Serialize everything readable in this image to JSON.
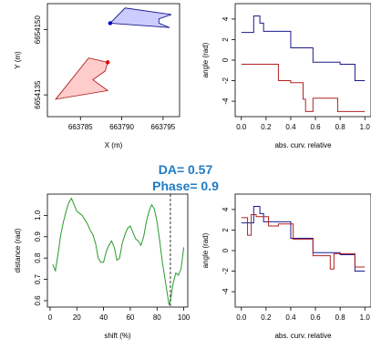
{
  "metrics": {
    "da_label": "DA= 0.57",
    "phase_label": "Phase= 0.9"
  },
  "colors": {
    "blue": "#1a1a8c",
    "red": "#b22222",
    "green": "#2a9a2a",
    "blue_fill": "#ccccff",
    "red_fill": "#ffcccc",
    "accent_text": "#1f7bc4"
  },
  "chart_data": [
    {
      "type": "scatter",
      "id": "map",
      "xlabel": "X (m)",
      "ylabel": "Y (m)",
      "xlim": [
        663781,
        663797
      ],
      "ylim": [
        6654130,
        6654156
      ],
      "xticks": [
        "663785",
        "663790",
        "663795"
      ],
      "yticks": [
        "6654135",
        "6654150"
      ],
      "series": [
        {
          "polygon": [
            [
              663788.6,
              6654151.5
            ],
            [
              663790.4,
              6654155.0
            ],
            [
              663796.0,
              6654153.5
            ],
            [
              663794.5,
              6654152.5
            ],
            [
              663794.5,
              6654151.5
            ],
            [
              663795.8,
              6654150.5
            ],
            [
              663788.6,
              6654151.5
            ]
          ],
          "color": "blue",
          "fill": "blue_fill",
          "start": [
            663788.6,
            6654151.5
          ]
        },
        {
          "polygon": [
            [
              663788.3,
              6654142.5
            ],
            [
              663786.0,
              6654143.5
            ],
            [
              663782.0,
              6654134.0
            ],
            [
              663788.3,
              6654136.0
            ],
            [
              663786.5,
              6654138.5
            ],
            [
              663788.0,
              6654140.5
            ],
            [
              663788.3,
              6654142.5
            ]
          ],
          "color": "red",
          "fill": "red_fill",
          "start": [
            663788.3,
            6654142.5
          ]
        }
      ]
    },
    {
      "type": "line",
      "id": "angle-top",
      "xlabel": "abs. curv. relative",
      "ylabel": "angle (rad)",
      "xlim": [
        -0.05,
        1.05
      ],
      "ylim": [
        -5.5,
        5.5
      ],
      "xticks": [
        "0.0",
        "0.2",
        "0.4",
        "0.6",
        "0.8",
        "1.0"
      ],
      "yticks": [
        "-4",
        "-2",
        "0",
        "2",
        "4"
      ],
      "series": [
        {
          "color": "blue",
          "x": [
            0,
            0.1,
            0.1,
            0.15,
            0.15,
            0.18,
            0.18,
            0.3,
            0.3,
            0.4,
            0.4,
            0.58,
            0.58,
            0.8,
            0.8,
            0.92,
            0.92,
            1.0
          ],
          "y": [
            2.7,
            2.7,
            4.3,
            4.3,
            3.6,
            3.6,
            2.8,
            2.8,
            2.8,
            2.8,
            1.2,
            1.2,
            -0.2,
            -0.2,
            -0.4,
            -0.4,
            -2.0,
            -2.0
          ]
        },
        {
          "color": "red",
          "x": [
            0,
            0.3,
            0.3,
            0.4,
            0.4,
            0.5,
            0.5,
            0.52,
            0.52,
            0.58,
            0.58,
            0.62,
            0.62,
            0.78,
            0.78,
            1.0
          ],
          "y": [
            -0.4,
            -0.4,
            -2.0,
            -2.0,
            -2.2,
            -2.2,
            -3.8,
            -3.8,
            -5.0,
            -5.0,
            -3.7,
            -3.7,
            -3.7,
            -3.7,
            -5.0,
            -5.0
          ]
        }
      ]
    },
    {
      "type": "line",
      "id": "distance",
      "xlabel": "shift (%)",
      "ylabel": "distance (rad)",
      "xlim": [
        -2,
        103
      ],
      "ylim": [
        0.57,
        1.1
      ],
      "xticks": [
        "0",
        "20",
        "40",
        "60",
        "80",
        "100"
      ],
      "yticks": [
        "0.6",
        "0.7",
        "0.8",
        "0.9",
        "1.0"
      ],
      "vline": 90,
      "series": [
        {
          "color": "green",
          "x": [
            2,
            4,
            6,
            8,
            10,
            12,
            14,
            16,
            18,
            20,
            22,
            24,
            26,
            28,
            30,
            32,
            34,
            36,
            38,
            40,
            42,
            44,
            46,
            48,
            50,
            52,
            54,
            56,
            58,
            60,
            62,
            64,
            66,
            68,
            70,
            72,
            74,
            76,
            78,
            80,
            82,
            84,
            86,
            88,
            89,
            90,
            92,
            94,
            96,
            98,
            100
          ],
          "y": [
            0.77,
            0.74,
            0.82,
            0.91,
            0.97,
            1.02,
            1.06,
            1.08,
            1.05,
            1.02,
            1.01,
            1.0,
            0.98,
            0.96,
            0.93,
            0.91,
            0.87,
            0.8,
            0.78,
            0.78,
            0.83,
            0.86,
            0.88,
            0.85,
            0.79,
            0.8,
            0.87,
            0.91,
            0.94,
            0.95,
            0.92,
            0.89,
            0.88,
            0.86,
            0.9,
            0.97,
            1.02,
            1.05,
            1.03,
            0.97,
            0.88,
            0.78,
            0.7,
            0.62,
            0.58,
            0.6,
            0.68,
            0.73,
            0.72,
            0.75,
            0.85
          ]
        }
      ]
    },
    {
      "type": "line",
      "id": "angle-bottom",
      "xlabel": "abs. curv. relative",
      "ylabel": "angle (rad)",
      "xlim": [
        -0.05,
        1.05
      ],
      "ylim": [
        -5.5,
        5.5
      ],
      "xticks": [
        "0.0",
        "0.2",
        "0.4",
        "0.6",
        "0.8",
        "1.0"
      ],
      "yticks": [
        "-4",
        "-2",
        "0",
        "2",
        "4"
      ],
      "series": [
        {
          "color": "blue",
          "x": [
            0,
            0.1,
            0.1,
            0.15,
            0.15,
            0.18,
            0.18,
            0.3,
            0.3,
            0.4,
            0.4,
            0.58,
            0.58,
            0.8,
            0.8,
            0.92,
            0.92,
            1.0
          ],
          "y": [
            2.7,
            2.7,
            4.3,
            4.3,
            3.6,
            3.6,
            2.8,
            2.8,
            2.8,
            2.8,
            1.2,
            1.2,
            -0.2,
            -0.2,
            -0.4,
            -0.4,
            -2.0,
            -2.0
          ]
        },
        {
          "color": "red",
          "x": [
            0,
            0.05,
            0.05,
            0.08,
            0.08,
            0.12,
            0.12,
            0.22,
            0.22,
            0.3,
            0.3,
            0.42,
            0.42,
            0.46,
            0.46,
            0.58,
            0.58,
            0.72,
            0.72,
            0.75,
            0.75,
            0.78,
            0.78,
            0.92,
            0.92,
            1.0
          ],
          "y": [
            3.2,
            3.2,
            1.5,
            1.5,
            3.5,
            3.5,
            3.3,
            3.3,
            2.4,
            2.4,
            2.6,
            2.6,
            1.1,
            1.1,
            1.1,
            1.1,
            -0.5,
            -0.5,
            -1.8,
            -1.8,
            -0.3,
            -0.3,
            -0.3,
            -0.3,
            -1.6,
            -1.6
          ]
        }
      ]
    }
  ]
}
